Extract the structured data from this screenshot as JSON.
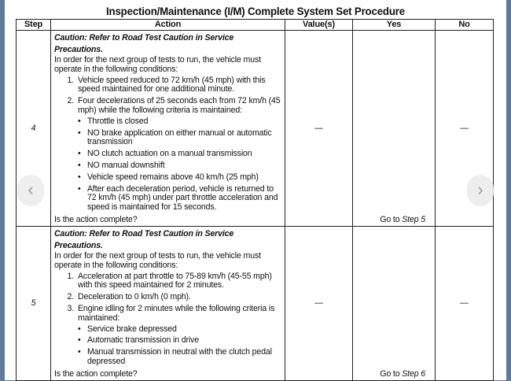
{
  "title": "Inspection/Maintenance (I/M) Complete System Set Procedure",
  "headers": {
    "step": "Step",
    "action": "Action",
    "value": "Value(s)",
    "yes": "Yes",
    "no": "No"
  },
  "rows": [
    {
      "step": "4",
      "caution": "Caution: Refer to Road Test Caution in Service Precautions.",
      "intro": "In order for the next group of tests to run, the vehicle must operate in the following conditions:",
      "items": [
        {
          "num": "1.",
          "text": "Vehicle speed reduced to 72 km/h (45 mph) with this speed maintained for one additional minute."
        },
        {
          "num": "2.",
          "text": "Four decelerations of 25 seconds each from 72 km/h (45 mph) while the following criteria is maintained:"
        }
      ],
      "bullets": [
        "Throttle is closed",
        "NO brake application on either manual or automatic transmission",
        "NO clutch actuation on a manual transmission",
        "NO manual downshift",
        "Vehicle speed remains above 40 km/h (25 mph)",
        "After each deceleration period, vehicle is returned to 72 km/h (45 mph) under part throttle acceleration and speed is maintained for 15 seconds."
      ],
      "question": "Is the action complete?",
      "value": "—",
      "yes_prefix": "Go to ",
      "yes_step": "Step 5",
      "no": "—"
    },
    {
      "step": "5",
      "caution": "Caution: Refer to Road Test Caution in Service Precautions.",
      "intro": "In order for the next group of tests to run, the vehicle must operate in the following conditions:",
      "items": [
        {
          "num": "1.",
          "text": "Acceleration at part throttle to 75-89 km/h (45-55 mph) with this speed maintained for 2 minutes."
        },
        {
          "num": "2.",
          "text": "Deceleration to 0 km/h (0 mph)."
        },
        {
          "num": "3.",
          "text": "Engine idling for 2 minutes while the following criteria is maintained:"
        }
      ],
      "bullets": [
        "Service brake depressed",
        "Automatic transmission in drive",
        "Manual transmission in neutral with the clutch pedal depressed"
      ],
      "question": "Is the action complete?",
      "value": "—",
      "yes_prefix": "Go to ",
      "yes_step": "Step 6",
      "no": "—"
    }
  ],
  "nav": {
    "prev": "‹",
    "next": "›"
  }
}
